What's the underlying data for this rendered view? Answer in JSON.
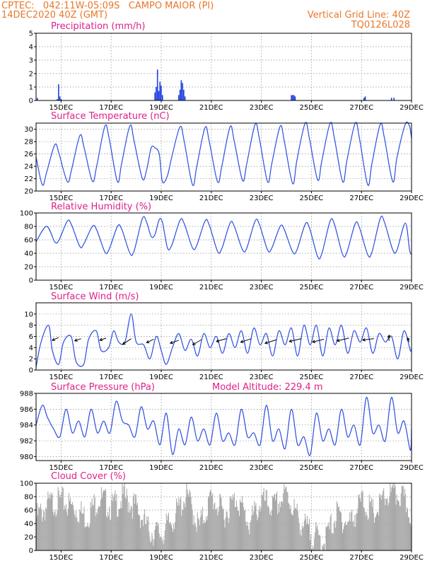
{
  "header": {
    "line1_left": "CPTEC:   042:11W-05:09S   CAMPO MAIOR (PI)",
    "line2_left": "14DEC2020 40Z (GMT)",
    "line2_right": "Vertical Grid Line: 40Z",
    "line3_right": "TQ0126L028"
  },
  "colors": {
    "header_text": "#e8772a",
    "panel_title": "#e0208a",
    "series_line": "#2a4de0",
    "precip_bars": "#1f3fe0",
    "cloud_bars": "#a8a8a8"
  },
  "x_axis": {
    "start_day": 14.0,
    "end_day": 29.0,
    "ticks": [
      {
        "day": 15,
        "label": "15DEC"
      },
      {
        "day": 17,
        "label": "17DEC"
      },
      {
        "day": 19,
        "label": "19DEC"
      },
      {
        "day": 21,
        "label": "21DEC"
      },
      {
        "day": 23,
        "label": "23DEC"
      },
      {
        "day": 25,
        "label": "25DEC"
      },
      {
        "day": 27,
        "label": "27DEC"
      },
      {
        "day": 29,
        "label": "29DEC"
      }
    ]
  },
  "chart_data": [
    {
      "type": "bar",
      "id": "precip",
      "title": "Precipitation (mm/h)",
      "ylim": [
        0,
        5
      ],
      "yticks": [
        0,
        1,
        2,
        3,
        4,
        5
      ],
      "grid": true,
      "x": [
        14.05,
        14.85,
        14.9,
        14.95,
        15.0,
        18.75,
        18.8,
        18.85,
        18.9,
        18.95,
        19.0,
        19.05,
        19.7,
        19.75,
        19.8,
        19.85,
        19.9,
        19.95,
        24.2,
        24.25,
        24.3,
        24.35,
        27.1,
        27.15,
        28.2,
        28.3
      ],
      "values": [
        0.2,
        0.1,
        1.2,
        0.3,
        0.1,
        0.6,
        1.0,
        2.3,
        0.7,
        1.4,
        1.1,
        0.4,
        0.4,
        0.8,
        1.5,
        1.3,
        0.8,
        0.3,
        0.4,
        0.4,
        0.4,
        0.3,
        0.2,
        0.3,
        0.2,
        0.2
      ]
    },
    {
      "type": "line",
      "id": "temperature",
      "title": "Surface Temperature (nC)",
      "ylim": [
        20,
        31
      ],
      "yticks": [
        20,
        22,
        24,
        26,
        28,
        30
      ],
      "grid": true,
      "x": [
        14.0,
        14.25,
        14.42,
        14.75,
        14.92,
        15.25,
        15.42,
        15.75,
        15.92,
        16.25,
        16.42,
        16.75,
        16.92,
        17.25,
        17.42,
        17.75,
        17.92,
        18.25,
        18.42,
        18.6,
        18.75,
        18.92,
        19.05,
        19.25,
        19.42,
        19.75,
        19.92,
        20.25,
        20.42,
        20.75,
        20.92,
        21.25,
        21.42,
        21.75,
        21.92,
        22.25,
        22.42,
        22.75,
        22.92,
        23.25,
        23.42,
        23.75,
        23.92,
        24.25,
        24.42,
        24.75,
        24.92,
        25.25,
        25.42,
        25.75,
        25.92,
        26.25,
        26.42,
        26.75,
        26.92,
        27.25,
        27.42,
        27.75,
        27.92,
        28.25,
        28.42,
        28.75,
        28.92,
        29.0
      ],
      "values": [
        25.5,
        21.0,
        23.0,
        27.5,
        26.0,
        21.5,
        23.5,
        29.0,
        27.0,
        21.6,
        24.0,
        30.5,
        28.5,
        21.5,
        24.5,
        30.6,
        28.0,
        22.0,
        23.5,
        27.0,
        27.0,
        26.0,
        21.5,
        22.5,
        25.5,
        30.4,
        28.0,
        21.0,
        24.0,
        30.3,
        28.0,
        21.5,
        24.0,
        30.4,
        28.0,
        21.7,
        24.5,
        30.8,
        28.5,
        21.5,
        24.5,
        30.5,
        28.0,
        21.2,
        25.0,
        31.0,
        28.5,
        21.8,
        25.0,
        31.0,
        28.5,
        21.5,
        25.0,
        31.0,
        28.5,
        21.0,
        24.5,
        30.8,
        28.5,
        21.5,
        25.5,
        30.8,
        30.5,
        28.5
      ]
    },
    {
      "type": "line",
      "id": "humidity",
      "title": "Relative Humidity (%)",
      "ylim": [
        0,
        100
      ],
      "yticks": [
        0,
        20,
        40,
        60,
        80,
        100
      ],
      "grid": true,
      "x": [
        14.0,
        14.42,
        14.75,
        14.92,
        15.25,
        15.42,
        15.75,
        15.92,
        16.25,
        16.42,
        16.75,
        16.92,
        17.25,
        17.42,
        17.75,
        17.92,
        18.25,
        18.42,
        18.6,
        18.75,
        18.92,
        19.05,
        19.25,
        19.42,
        19.75,
        19.92,
        20.25,
        20.42,
        20.75,
        20.92,
        21.25,
        21.42,
        21.75,
        21.92,
        22.25,
        22.42,
        22.75,
        22.92,
        23.25,
        23.42,
        23.75,
        23.92,
        24.25,
        24.42,
        24.75,
        24.92,
        25.25,
        25.42,
        25.75,
        25.92,
        26.25,
        26.42,
        26.75,
        26.92,
        27.25,
        27.42,
        27.75,
        27.92,
        28.25,
        28.42,
        28.75,
        28.92,
        29.0
      ],
      "values": [
        57,
        80,
        57,
        60,
        88,
        82,
        50,
        55,
        80,
        75,
        42,
        46,
        80,
        76,
        40,
        44,
        92,
        86,
        65,
        68,
        90,
        86,
        48,
        52,
        89,
        84,
        48,
        52,
        88,
        82,
        43,
        47,
        85,
        80,
        45,
        48,
        88,
        83,
        45,
        48,
        80,
        75,
        42,
        45,
        83,
        78,
        35,
        40,
        88,
        83,
        38,
        42,
        84,
        78,
        38,
        42,
        92,
        86,
        45,
        45,
        85,
        45,
        38
      ]
    },
    {
      "type": "line",
      "id": "wind",
      "title": "Surface Wind (m/s)",
      "ylim": [
        0,
        12
      ],
      "yticks": [
        0,
        2,
        4,
        6,
        8,
        10
      ],
      "grid": true,
      "x": [
        14.0,
        14.2,
        14.5,
        14.65,
        14.9,
        15.1,
        15.4,
        15.6,
        15.9,
        16.1,
        16.4,
        16.6,
        16.9,
        17.1,
        17.3,
        17.55,
        17.8,
        18.0,
        18.3,
        18.55,
        18.8,
        19.0,
        19.2,
        19.45,
        19.7,
        19.95,
        20.2,
        20.45,
        20.7,
        20.95,
        21.2,
        21.45,
        21.7,
        21.95,
        22.2,
        22.45,
        22.7,
        22.95,
        23.2,
        23.45,
        23.7,
        23.95,
        24.2,
        24.45,
        24.7,
        24.95,
        25.2,
        25.45,
        25.7,
        25.95,
        26.2,
        26.45,
        26.7,
        26.95,
        27.2,
        27.45,
        27.7,
        27.95,
        28.2,
        28.45,
        28.7,
        28.95,
        29.0
      ],
      "values": [
        0.5,
        5.0,
        8.0,
        3.5,
        1.0,
        5.0,
        6.0,
        1.5,
        1.0,
        5.5,
        7.0,
        3.5,
        4.0,
        7.0,
        5.0,
        5.0,
        10.0,
        5.0,
        4.5,
        2.0,
        6.0,
        3.5,
        1.0,
        4.0,
        6.5,
        3.5,
        5.5,
        2.5,
        6.5,
        4.0,
        6.0,
        3.0,
        6.5,
        4.0,
        7.0,
        3.0,
        7.5,
        4.5,
        6.5,
        2.5,
        7.0,
        4.5,
        7.5,
        2.5,
        8.0,
        4.5,
        8.0,
        2.5,
        7.5,
        4.5,
        8.0,
        3.0,
        7.0,
        5.0,
        7.5,
        3.0,
        6.5,
        5.0,
        6.0,
        2.0,
        7.0,
        3.5,
        4.0
      ],
      "wind_arrows": [
        {
          "x": 14.9,
          "y": 5.8,
          "dx": -9,
          "dy": 4
        },
        {
          "x": 15.8,
          "y": 5.6,
          "dx": -9,
          "dy": 3
        },
        {
          "x": 16.8,
          "y": 5.7,
          "dx": -9,
          "dy": 3
        },
        {
          "x": 17.8,
          "y": 5.6,
          "dx": -12,
          "dy": 8
        },
        {
          "x": 18.7,
          "y": 5.5,
          "dx": -10,
          "dy": 5
        },
        {
          "x": 19.7,
          "y": 5.3,
          "dx": -12,
          "dy": 4
        },
        {
          "x": 20.6,
          "y": 5.4,
          "dx": -12,
          "dy": 7
        },
        {
          "x": 21.6,
          "y": 5.6,
          "dx": -14,
          "dy": 4
        },
        {
          "x": 22.6,
          "y": 5.6,
          "dx": -15,
          "dy": 5
        },
        {
          "x": 23.6,
          "y": 5.4,
          "dx": -16,
          "dy": 5
        },
        {
          "x": 24.6,
          "y": 5.6,
          "dx": -17,
          "dy": 4
        },
        {
          "x": 25.5,
          "y": 5.5,
          "dx": -16,
          "dy": 4
        },
        {
          "x": 26.5,
          "y": 5.7,
          "dx": -17,
          "dy": 4
        },
        {
          "x": 27.5,
          "y": 5.6,
          "dx": -16,
          "dy": 2
        },
        {
          "x": 28.1,
          "y": 5.2,
          "dx": 0,
          "dy": -8
        },
        {
          "x": 28.9,
          "y": 5.0,
          "dx": -2,
          "dy": -6
        }
      ]
    },
    {
      "type": "line",
      "id": "pressure",
      "title": "Surface Pressure (hPa)",
      "annotation": "Model Altitude: 229.4 m",
      "ylim": [
        979.5,
        988
      ],
      "yticks": [
        980,
        982,
        984,
        986,
        988
      ],
      "grid": true,
      "x": [
        14.0,
        14.25,
        14.45,
        14.7,
        14.95,
        15.2,
        15.45,
        15.7,
        15.95,
        16.2,
        16.45,
        16.7,
        16.95,
        17.2,
        17.45,
        17.7,
        17.95,
        18.2,
        18.45,
        18.7,
        18.95,
        19.2,
        19.45,
        19.7,
        19.95,
        20.2,
        20.45,
        20.7,
        20.95,
        21.2,
        21.45,
        21.7,
        21.95,
        22.2,
        22.45,
        22.7,
        22.95,
        23.2,
        23.45,
        23.7,
        23.95,
        24.2,
        24.45,
        24.7,
        24.95,
        25.2,
        25.45,
        25.7,
        25.95,
        26.2,
        26.45,
        26.7,
        26.95,
        27.2,
        27.45,
        27.7,
        27.95,
        28.2,
        28.45,
        28.7,
        28.95,
        29.0
      ],
      "values": [
        984.0,
        986.5,
        985.0,
        983.5,
        982.5,
        986.0,
        983.0,
        984.5,
        982.5,
        986.0,
        983.0,
        984.5,
        983.0,
        987.0,
        984.5,
        984.0,
        982.5,
        986.3,
        983.5,
        984.5,
        981.5,
        985.5,
        980.3,
        983.5,
        981.5,
        985.0,
        982.0,
        983.5,
        981.5,
        985.5,
        982.0,
        983.0,
        981.5,
        986.0,
        982.5,
        983.0,
        981.5,
        986.5,
        982.0,
        983.5,
        981.0,
        986.0,
        981.5,
        982.5,
        980.2,
        985.5,
        982.0,
        983.5,
        981.5,
        986.0,
        982.5,
        984.0,
        981.5,
        987.5,
        983.0,
        984.0,
        982.0,
        987.5,
        983.0,
        984.5,
        980.8,
        983.5
      ]
    },
    {
      "type": "bar",
      "id": "cloud",
      "title": "Cloud Cover (%)",
      "ylim": [
        0,
        100
      ],
      "yticks": [
        0,
        20,
        40,
        60,
        80,
        100
      ],
      "grid": true,
      "x": [
        14.0,
        14.5,
        15.0,
        15.5,
        16.0,
        16.5,
        17.0,
        17.5,
        18.0,
        18.5,
        19.0,
        19.5,
        20.0,
        20.5,
        21.0,
        21.5,
        22.0,
        22.5,
        23.0,
        23.5,
        24.0,
        24.5,
        25.0,
        25.5,
        26.0,
        26.5,
        27.0,
        27.5,
        28.0,
        28.5,
        29.0
      ],
      "values": [
        55,
        75,
        80,
        70,
        55,
        85,
        70,
        85,
        70,
        35,
        30,
        55,
        90,
        40,
        85,
        60,
        85,
        45,
        80,
        70,
        90,
        50,
        30,
        20,
        60,
        45,
        80,
        60,
        88,
        90,
        60
      ]
    }
  ]
}
